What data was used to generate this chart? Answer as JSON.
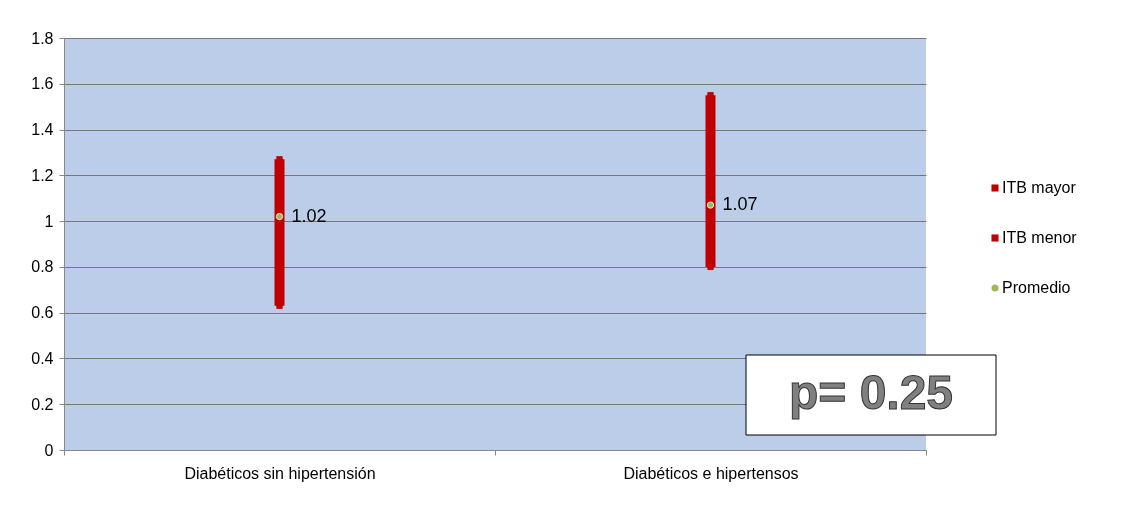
{
  "chart_data": {
    "type": "bar",
    "categories": [
      "Diabéticos sin hipertensión",
      "Diabéticos e hipertensos"
    ],
    "series": [
      {
        "color": "#c00000",
        "base": [
          0.63,
          0.8
        ],
        "values": [
          0.64,
          0.75
        ]
      },
      {
        "name": "ITB mayor",
        "type": "scatter",
        "marker": "square",
        "color": "#c00000",
        "values": [
          1.27,
          1.55
        ]
      },
      {
        "name": "ITB menor",
        "type": "scatter",
        "marker": "square",
        "color": "#c00000",
        "values": [
          0.63,
          0.8
        ]
      },
      {
        "name": "Promedio",
        "type": "scatter",
        "marker": "circle",
        "color": "#9bbb59",
        "values": [
          1.02,
          1.07
        ],
        "data_labels": true
      }
    ],
    "ylim": [
      0,
      1.8
    ],
    "yticks": [
      0,
      0.2,
      0.4,
      0.6,
      0.8,
      1,
      1.2,
      1.4,
      1.6,
      1.8
    ],
    "grid": "y",
    "legend": "right",
    "annotations": [
      "p= 0.25"
    ]
  }
}
